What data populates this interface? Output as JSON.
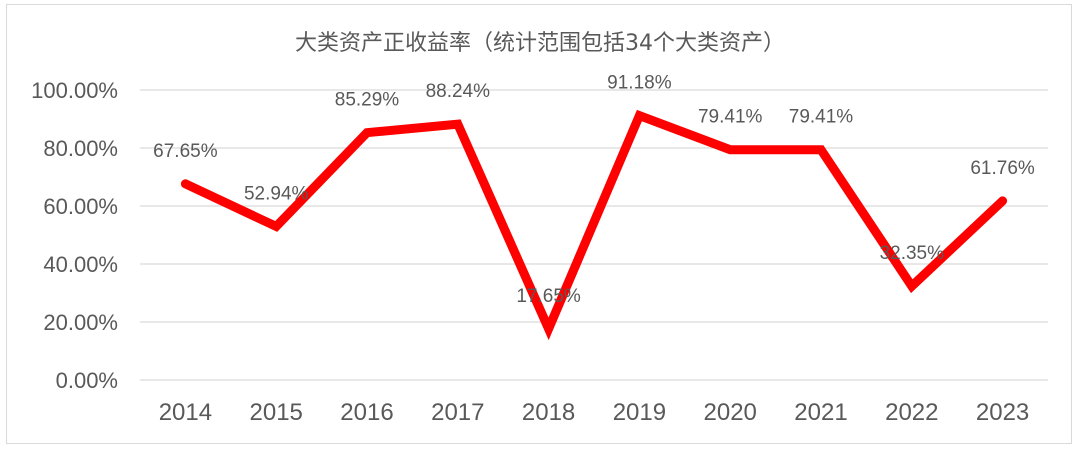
{
  "chart_data": {
    "type": "line",
    "title": "大类资产正收益率（统计范围包括34个大类资产）",
    "categories": [
      "2014",
      "2015",
      "2016",
      "2017",
      "2018",
      "2019",
      "2020",
      "2021",
      "2022",
      "2023"
    ],
    "series": [
      {
        "values": [
          67.65,
          52.94,
          85.29,
          88.24,
          17.65,
          91.18,
          79.41,
          79.41,
          32.35,
          61.76
        ],
        "labels": [
          "67.65%",
          "52.94%",
          "85.29%",
          "88.24%",
          "17.65%",
          "91.18%",
          "79.41%",
          "79.41%",
          "32.35%",
          "61.76%"
        ],
        "color": "#ff0000"
      }
    ],
    "yticks": [
      0,
      20,
      40,
      60,
      80,
      100
    ],
    "ytick_labels": [
      "0.00%",
      "20.00%",
      "40.00%",
      "60.00%",
      "80.00%",
      "100.00%"
    ],
    "ylim": [
      0,
      100
    ],
    "grid": true,
    "legend": "none"
  }
}
